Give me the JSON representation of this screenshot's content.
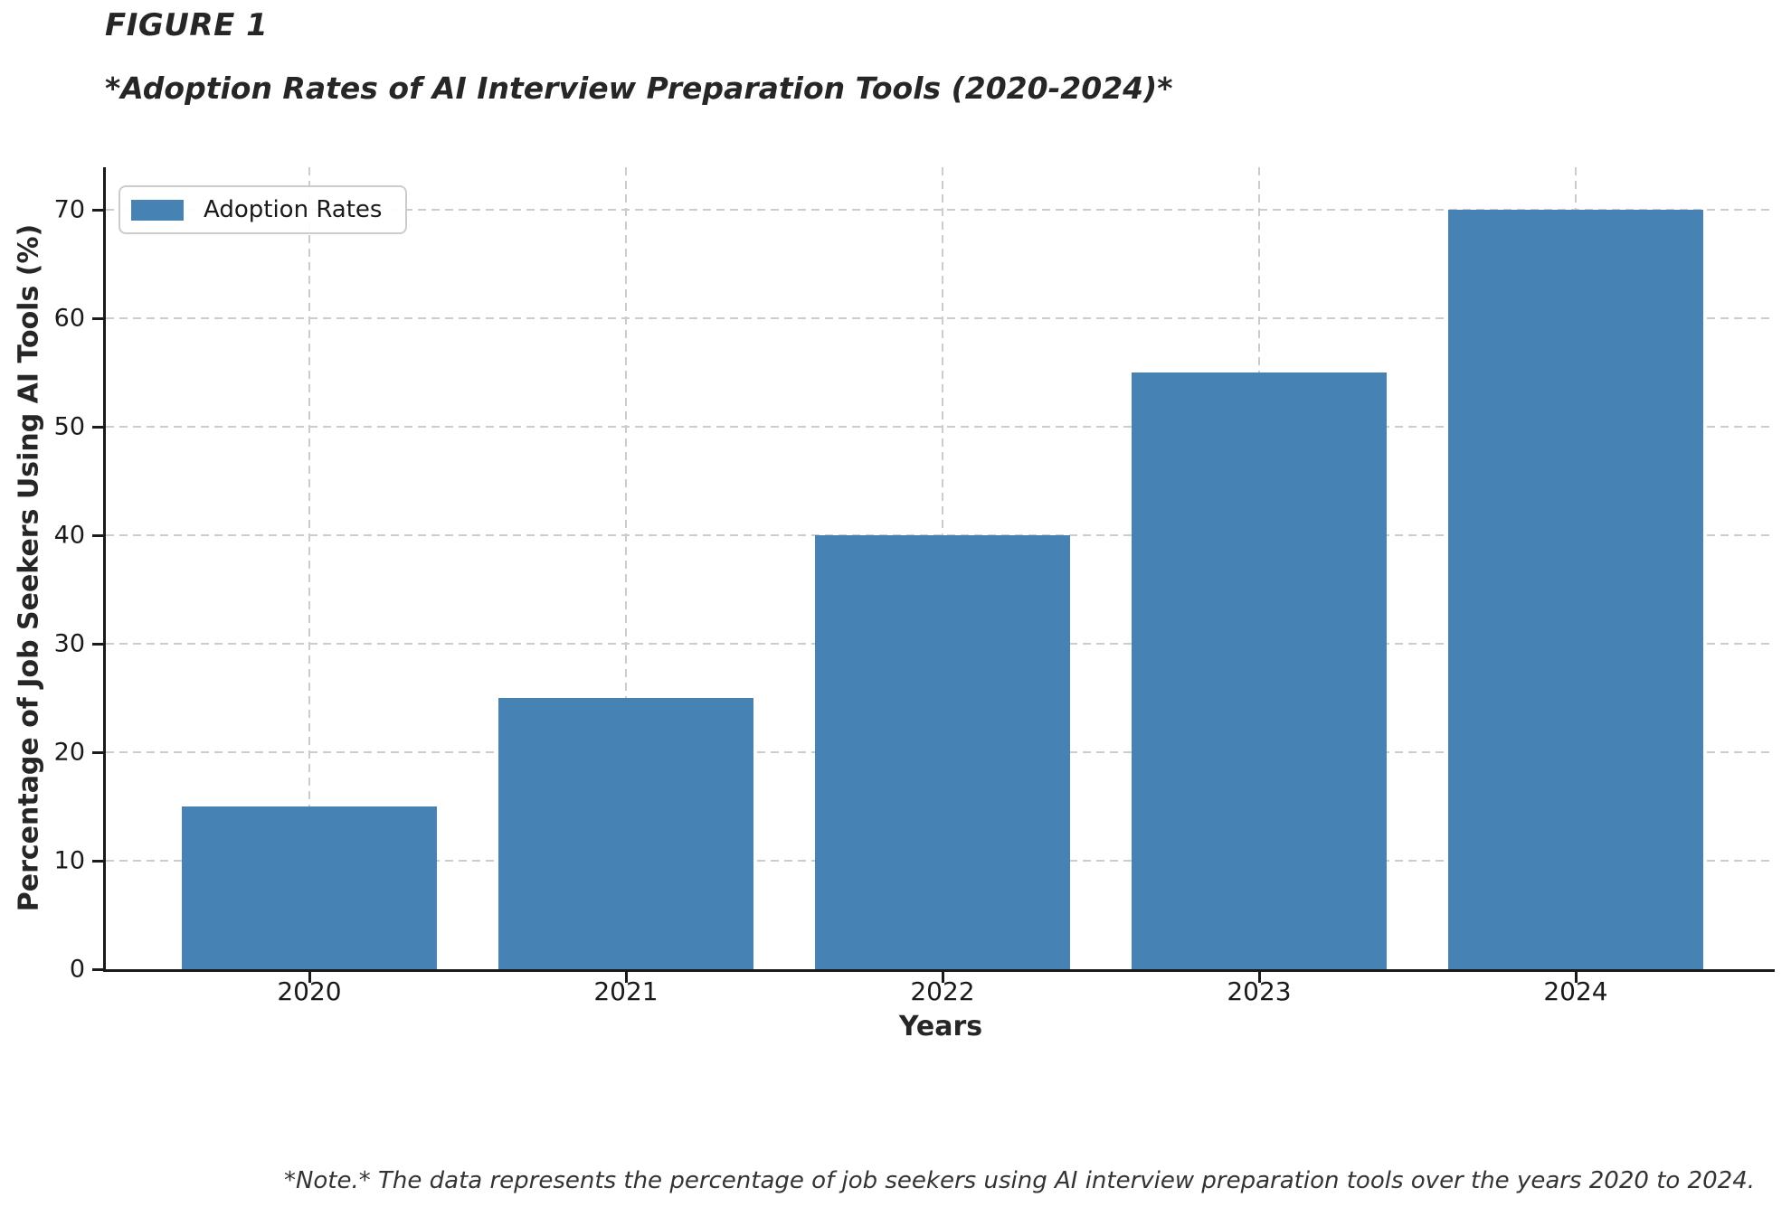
{
  "header": {
    "figure_label": "FIGURE 1",
    "title": "*Adoption Rates of AI Interview Preparation Tools (2020-2024)*"
  },
  "chart_data": {
    "type": "bar",
    "title": "*Adoption Rates of AI Interview Preparation Tools (2020-2024)*",
    "categories": [
      "2020",
      "2021",
      "2022",
      "2023",
      "2024"
    ],
    "series": [
      {
        "name": "Adoption Rates",
        "values": [
          15,
          25,
          40,
          55,
          70
        ]
      }
    ],
    "xlabel": "Years",
    "ylabel": "Percentage of Job Seekers Using AI Tools (%)",
    "ylim": [
      0,
      73.9
    ],
    "yticks": [
      0,
      10,
      20,
      30,
      40,
      50,
      60,
      70
    ],
    "bar_color": "#4682B4",
    "grid": "dashed light-gray gridlines on both axes, behind bars",
    "legend_position": "upper left"
  },
  "note": "*Note.* The data represents the percentage of job seekers using AI interview preparation tools over the years 2020 to 2024."
}
